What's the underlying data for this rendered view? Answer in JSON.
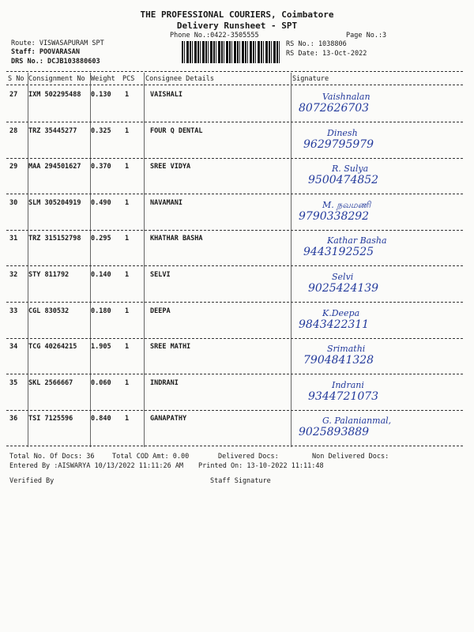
{
  "header": {
    "company": "THE PROFESSIONAL COURIERS, Coimbatore",
    "title": "Delivery Runsheet - SPT",
    "phone": "Phone No.:0422-3505555",
    "page": "Page No.:3",
    "route": "Route: VISWASAPURAM SPT",
    "staff": "Staff: POOVARASAN",
    "drs": "DRS No.: DCJB103880603",
    "rs_no": "RS No.: 1038806",
    "rs_date": "RS Date: 13-Oct-2022"
  },
  "columns": [
    "S No",
    "Consignment No",
    "Weight",
    "PCS",
    "Consignee Details",
    "Signature"
  ],
  "rows": [
    {
      "sno": "27",
      "cn": "IXM 502295488",
      "wt": "0.130",
      "pcs": "1",
      "name": "VAISHALI",
      "sig_name": "Vaishnalan",
      "sig_phone": "8072626703"
    },
    {
      "sno": "28",
      "cn": "TRZ 35445277",
      "wt": "0.325",
      "pcs": "1",
      "name": "FOUR Q DENTAL",
      "sig_name": "Dinesh",
      "sig_phone": "9629795979"
    },
    {
      "sno": "29",
      "cn": "MAA 294501627",
      "wt": "0.370",
      "pcs": "1",
      "name": "SREE VIDYA",
      "sig_name": "R. Sulya",
      "sig_phone": "9500474852"
    },
    {
      "sno": "30",
      "cn": "SLM 305204919",
      "wt": "0.490",
      "pcs": "1",
      "name": "NAVAMANI",
      "sig_name": "M. நவமணி",
      "sig_phone": "9790338292"
    },
    {
      "sno": "31",
      "cn": "TRZ 315152798",
      "wt": "0.295",
      "pcs": "1",
      "name": "KHATHAR BASHA",
      "sig_name": "Kathar Basha",
      "sig_phone": "9443192525"
    },
    {
      "sno": "32",
      "cn": "STY 811792",
      "wt": "0.140",
      "pcs": "1",
      "name": "SELVI",
      "sig_name": "Selvi",
      "sig_phone": "9025424139"
    },
    {
      "sno": "33",
      "cn": "CGL 830532",
      "wt": "0.180",
      "pcs": "1",
      "name": "DEEPA",
      "sig_name": "K.Deepa",
      "sig_phone": "9843422311"
    },
    {
      "sno": "34",
      "cn": "TCG 40264215",
      "wt": "1.905",
      "pcs": "1",
      "name": "SREE MATHI",
      "sig_name": "Srimathi",
      "sig_phone": "7904841328"
    },
    {
      "sno": "35",
      "cn": "SKL 2566667",
      "wt": "0.060",
      "pcs": "1",
      "name": "INDRANI",
      "sig_name": "Indrani",
      "sig_phone": "9344721073"
    },
    {
      "sno": "36",
      "cn": "TSI 7125596",
      "wt": "0.840",
      "pcs": "1",
      "name": "GANAPATHY",
      "sig_name": "G. Palanianmal,",
      "sig_phone": "9025893889"
    }
  ],
  "footer": {
    "total_docs": "Total No. Of Docs:  36",
    "total_cod": "Total COD Amt:    0.00",
    "delivered": "Delivered Docs:",
    "non_delivered": "Non Delivered Docs:",
    "entered_by": "Entered By :AISWARYA 10/13/2022 11:11:26 AM",
    "printed_on": "Printed On: 13-10-2022 11:11:48",
    "verified_by": "Verified By",
    "staff_signature": "Staff Signature"
  },
  "colors": {
    "ink": "#1a1a1a",
    "signature_ink": "#233a9c"
  }
}
